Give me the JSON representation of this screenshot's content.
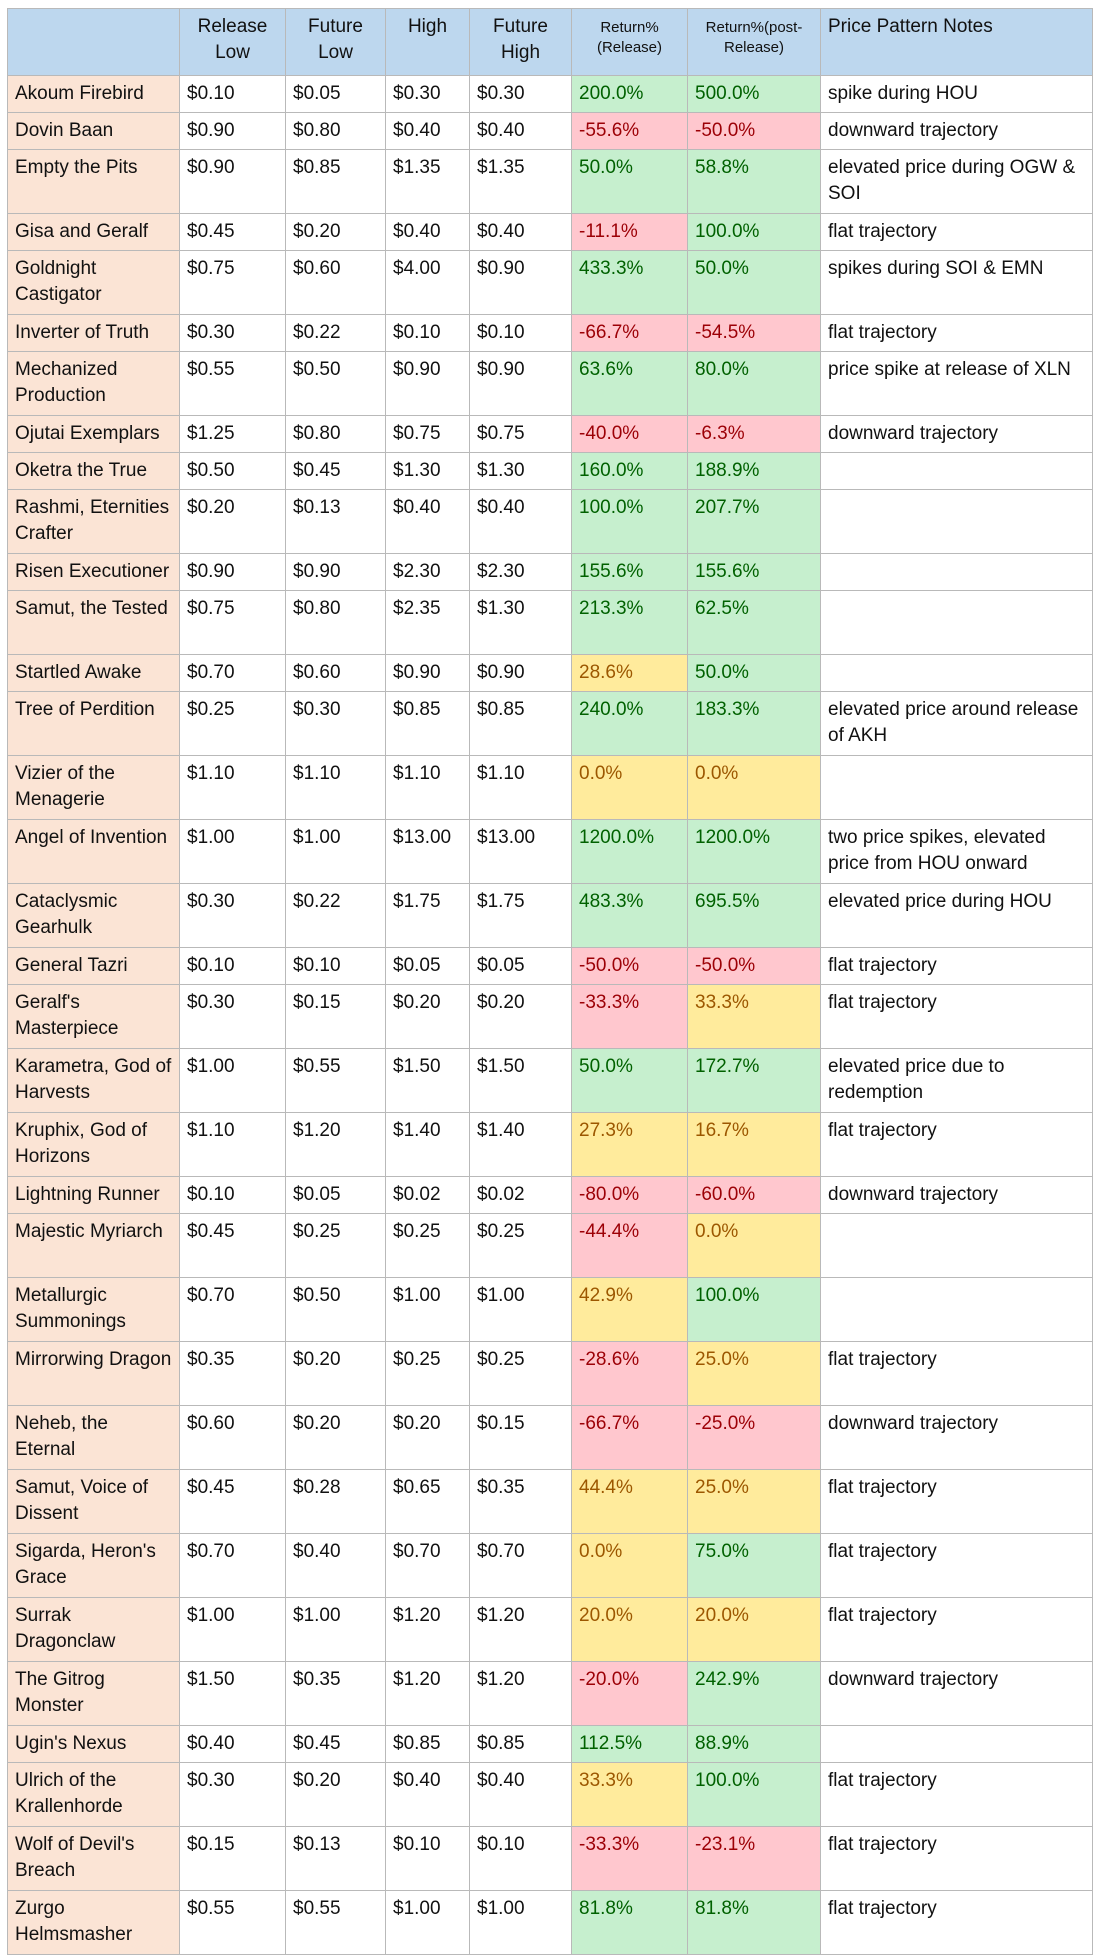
{
  "chart_data": {
    "type": "table",
    "columns": [
      "",
      "Release Low",
      "Future Low",
      "High",
      "Future High",
      "Return% (Release)",
      "Return%(post-Release)",
      "Price Pattern Notes"
    ],
    "rows": [
      [
        "Akoum Firebird",
        "$0.10",
        "$0.05",
        "$0.30",
        "$0.30",
        "200.0%",
        "500.0%",
        "spike during HOU"
      ],
      [
        "Dovin Baan",
        "$0.90",
        "$0.80",
        "$0.40",
        "$0.40",
        "-55.6%",
        "-50.0%",
        "downward trajectory"
      ],
      [
        "Empty the Pits",
        "$0.90",
        "$0.85",
        "$1.35",
        "$1.35",
        "50.0%",
        "58.8%",
        "elevated price during OGW & SOI"
      ],
      [
        "Gisa and Geralf",
        "$0.45",
        "$0.20",
        "$0.40",
        "$0.40",
        "-11.1%",
        "100.0%",
        "flat trajectory"
      ],
      [
        "Goldnight Castigator",
        "$0.75",
        "$0.60",
        "$4.00",
        "$0.90",
        "433.3%",
        "50.0%",
        "spikes during SOI & EMN"
      ],
      [
        "Inverter of Truth",
        "$0.30",
        "$0.22",
        "$0.10",
        "$0.10",
        "-66.7%",
        "-54.5%",
        "flat trajectory"
      ],
      [
        "Mechanized Production",
        "$0.55",
        "$0.50",
        "$0.90",
        "$0.90",
        "63.6%",
        "80.0%",
        "price spike at release of XLN"
      ],
      [
        "Ojutai Exemplars",
        "$1.25",
        "$0.80",
        "$0.75",
        "$0.75",
        "-40.0%",
        "-6.3%",
        "downward trajectory"
      ],
      [
        "Oketra the True",
        "$0.50",
        "$0.45",
        "$1.30",
        "$1.30",
        "160.0%",
        "188.9%",
        ""
      ],
      [
        "Rashmi, Eternities Crafter",
        "$0.20",
        "$0.13",
        "$0.40",
        "$0.40",
        "100.0%",
        "207.7%",
        ""
      ],
      [
        "Risen Executioner",
        "$0.90",
        "$0.90",
        "$2.30",
        "$2.30",
        "155.6%",
        "155.6%",
        ""
      ],
      [
        "Samut, the Tested",
        "$0.75",
        "$0.80",
        "$2.35",
        "$1.30",
        "213.3%",
        "62.5%",
        ""
      ],
      [
        "Startled Awake",
        "$0.70",
        "$0.60",
        "$0.90",
        "$0.90",
        "28.6%",
        "50.0%",
        ""
      ],
      [
        "Tree of Perdition",
        "$0.25",
        "$0.30",
        "$0.85",
        "$0.85",
        "240.0%",
        "183.3%",
        "elevated price around release of AKH"
      ],
      [
        "Vizier of the Menagerie",
        "$1.10",
        "$1.10",
        "$1.10",
        "$1.10",
        "0.0%",
        "0.0%",
        ""
      ],
      [
        "Angel of Invention",
        "$1.00",
        "$1.00",
        "$13.00",
        "$13.00",
        "1200.0%",
        "1200.0%",
        "two price spikes, elevated price from HOU onward"
      ],
      [
        "Cataclysmic Gearhulk",
        "$0.30",
        "$0.22",
        "$1.75",
        "$1.75",
        "483.3%",
        "695.5%",
        "elevated price during HOU"
      ],
      [
        "General Tazri",
        "$0.10",
        "$0.10",
        "$0.05",
        "$0.05",
        "-50.0%",
        "-50.0%",
        "flat trajectory"
      ],
      [
        "Geralf's Masterpiece",
        "$0.30",
        "$0.15",
        "$0.20",
        "$0.20",
        "-33.3%",
        "33.3%",
        "flat trajectory"
      ],
      [
        "Karametra, God of Harvests",
        "$1.00",
        "$0.55",
        "$1.50",
        "$1.50",
        "50.0%",
        "172.7%",
        "elevated price due to redemption"
      ],
      [
        "Kruphix, God of Horizons",
        "$1.10",
        "$1.20",
        "$1.40",
        "$1.40",
        "27.3%",
        "16.7%",
        "flat trajectory"
      ],
      [
        "Lightning Runner",
        "$0.10",
        "$0.05",
        "$0.02",
        "$0.02",
        "-80.0%",
        "-60.0%",
        "downward trajectory"
      ],
      [
        "Majestic Myriarch",
        "$0.45",
        "$0.25",
        "$0.25",
        "$0.25",
        "-44.4%",
        "0.0%",
        ""
      ],
      [
        "Metallurgic Summonings",
        "$0.70",
        "$0.50",
        "$1.00",
        "$1.00",
        "42.9%",
        "100.0%",
        ""
      ],
      [
        "Mirrorwing Dragon",
        "$0.35",
        "$0.20",
        "$0.25",
        "$0.25",
        "-28.6%",
        "25.0%",
        "flat trajectory"
      ],
      [
        "Neheb, the Eternal",
        "$0.60",
        "$0.20",
        "$0.20",
        "$0.15",
        "-66.7%",
        "-25.0%",
        "downward trajectory"
      ],
      [
        "Samut, Voice of Dissent",
        "$0.45",
        "$0.28",
        "$0.65",
        "$0.35",
        "44.4%",
        "25.0%",
        "flat trajectory"
      ],
      [
        "Sigarda, Heron's Grace",
        "$0.70",
        "$0.40",
        "$0.70",
        "$0.70",
        "0.0%",
        "75.0%",
        "flat trajectory"
      ],
      [
        "Surrak Dragonclaw",
        "$1.00",
        "$1.00",
        "$1.20",
        "$1.20",
        "20.0%",
        "20.0%",
        "flat trajectory"
      ],
      [
        "The Gitrog Monster",
        "$1.50",
        "$0.35",
        "$1.20",
        "$1.20",
        "-20.0%",
        "242.9%",
        "downward trajectory"
      ],
      [
        "Ugin's Nexus",
        "$0.40",
        "$0.45",
        "$0.85",
        "$0.85",
        "112.5%",
        "88.9%",
        ""
      ],
      [
        "Ulrich of the Krallenhorde",
        "$0.30",
        "$0.20",
        "$0.40",
        "$0.40",
        "33.3%",
        "100.0%",
        "flat trajectory"
      ],
      [
        "Wolf of Devil's Breach",
        "$0.15",
        "$0.13",
        "$0.10",
        "$0.10",
        "-33.3%",
        "-23.1%",
        "flat trajectory"
      ],
      [
        "Zurgo Helmsmasher",
        "$0.55",
        "$0.55",
        "$1.00",
        "$1.00",
        "81.8%",
        "81.8%",
        "flat trajectory"
      ]
    ],
    "cell_colors": {
      "name": "#fbe4d5",
      "header": "#bdd7ee",
      "positive": "#c6efce",
      "neutral": "#ffeb9c",
      "negative": "#ffc7ce"
    }
  }
}
